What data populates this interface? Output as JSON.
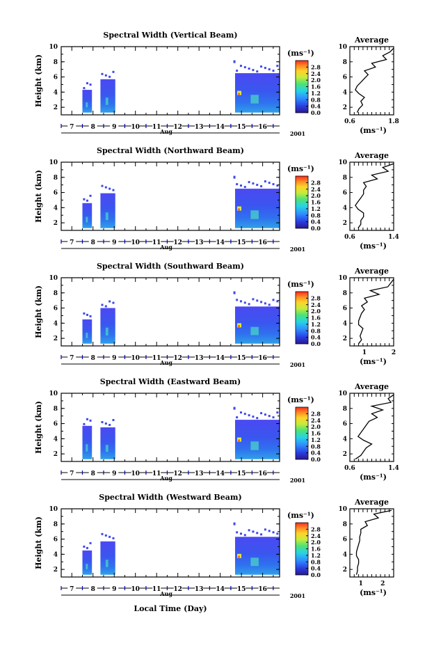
{
  "figure": {
    "month_label": "Aug",
    "year_label": "2001",
    "footer_xlabel": "Local Time (Day)",
    "y_label": "Height (km)",
    "unit_label": "(ms⁻¹)",
    "avg_title": "Average",
    "avg_xunit": "(ms⁻¹)"
  },
  "chart_data": [
    {
      "type": "heatmap",
      "title": "Spectral Width (Vertical Beam)",
      "ylabel": "Height (km)",
      "xlabel": "Aug",
      "x_ticks": [
        "7",
        "8",
        "9",
        "10",
        "11",
        "12",
        "13",
        "14",
        "15",
        "16"
      ],
      "y_ticks": [
        "2",
        "4",
        "6",
        "8",
        "10"
      ],
      "ylim": [
        1,
        10
      ],
      "xlim": [
        6.5,
        16.8
      ],
      "colorbar": {
        "label": "(ms⁻¹)",
        "ticks": [
          "0.0",
          "0.4",
          "0.8",
          "1.2",
          "1.6",
          "2.0",
          "2.4",
          "2.8"
        ],
        "range": [
          0,
          2.8
        ]
      },
      "data_blocks": [
        {
          "x": [
            7.5,
            7.95
          ],
          "y": [
            1.3,
            4.3
          ],
          "value": 0.6
        },
        {
          "x": [
            8.35,
            9.05
          ],
          "y": [
            1.3,
            5.7
          ],
          "value": 0.7
        },
        {
          "x": [
            14.7,
            16.8
          ],
          "y": [
            1.3,
            6.5
          ],
          "value": 0.8
        }
      ],
      "average_profile": {
        "title": "Average",
        "xlim": [
          0.6,
          1.8
        ],
        "x_ticks": [
          "0.6",
          "1.8"
        ],
        "y_ticks": [
          "2",
          "4",
          "6",
          "8",
          "10"
        ],
        "heights": [
          1.3,
          1.8,
          2.3,
          2.8,
          3.3,
          3.8,
          4.3,
          4.8,
          5.3,
          5.8,
          6.3,
          6.8,
          7.3,
          7.8,
          8.3,
          8.8,
          9.3,
          9.8
        ],
        "values": [
          0.8,
          0.85,
          0.95,
          0.9,
          1.0,
          0.85,
          0.75,
          0.8,
          0.9,
          1.0,
          1.1,
          1.0,
          1.3,
          1.2,
          1.6,
          1.5,
          1.7,
          1.8
        ]
      }
    },
    {
      "type": "heatmap",
      "title": "Spectral Width (Northward Beam)",
      "ylabel": "Height (km)",
      "xlabel": "Aug",
      "x_ticks": [
        "7",
        "8",
        "9",
        "10",
        "11",
        "12",
        "13",
        "14",
        "15",
        "16"
      ],
      "y_ticks": [
        "2",
        "4",
        "6",
        "8",
        "10"
      ],
      "ylim": [
        1,
        10
      ],
      "xlim": [
        6.5,
        16.8
      ],
      "colorbar": {
        "label": "(ms⁻¹)",
        "ticks": [
          "0.0",
          "0.4",
          "0.8",
          "1.2",
          "1.6",
          "2.0",
          "2.4",
          "2.8"
        ],
        "range": [
          0,
          2.8
        ]
      },
      "data_blocks": [
        {
          "x": [
            7.5,
            7.95
          ],
          "y": [
            1.3,
            4.6
          ],
          "value": 0.6
        },
        {
          "x": [
            8.35,
            9.05
          ],
          "y": [
            1.3,
            5.9
          ],
          "value": 0.7
        },
        {
          "x": [
            14.7,
            16.8
          ],
          "y": [
            1.3,
            6.5
          ],
          "value": 0.8
        }
      ],
      "average_profile": {
        "title": "Average",
        "xlim": [
          0.6,
          1.4
        ],
        "x_ticks": [
          "0.6",
          "1.4"
        ],
        "y_ticks": [
          "2",
          "4",
          "6",
          "8",
          "10"
        ],
        "heights": [
          1.3,
          1.8,
          2.3,
          2.8,
          3.3,
          3.8,
          4.3,
          4.8,
          5.3,
          5.8,
          6.3,
          6.8,
          7.3,
          7.8,
          8.3,
          8.8,
          9.3,
          9.8
        ],
        "values": [
          0.75,
          0.8,
          0.8,
          0.85,
          0.85,
          0.75,
          0.7,
          0.75,
          0.8,
          0.85,
          0.85,
          0.9,
          0.85,
          1.1,
          1.0,
          1.3,
          1.2,
          1.4
        ]
      }
    },
    {
      "type": "heatmap",
      "title": "Spectral Width (Southward Beam)",
      "ylabel": "Height (km)",
      "xlabel": "Aug",
      "x_ticks": [
        "7",
        "8",
        "9",
        "10",
        "11",
        "12",
        "13",
        "14",
        "15",
        "16"
      ],
      "y_ticks": [
        "2",
        "4",
        "6",
        "8",
        "10"
      ],
      "ylim": [
        1,
        10
      ],
      "xlim": [
        6.5,
        16.8
      ],
      "colorbar": {
        "label": "(ms⁻¹)",
        "ticks": [
          "0.0",
          "0.4",
          "0.8",
          "1.2",
          "1.6",
          "2.0",
          "2.4",
          "2.8"
        ],
        "range": [
          0,
          2.8
        ]
      },
      "data_blocks": [
        {
          "x": [
            7.5,
            7.95
          ],
          "y": [
            1.3,
            4.5
          ],
          "value": 0.6
        },
        {
          "x": [
            8.35,
            9.05
          ],
          "y": [
            1.3,
            6.0
          ],
          "value": 0.7
        },
        {
          "x": [
            14.7,
            16.8
          ],
          "y": [
            1.3,
            6.2
          ],
          "value": 0.8
        }
      ],
      "average_profile": {
        "title": "Average",
        "xlim": [
          0.5,
          2.0
        ],
        "x_ticks": [
          "1",
          "2"
        ],
        "y_ticks": [
          "2",
          "4",
          "6",
          "8",
          "10"
        ],
        "heights": [
          1.3,
          1.8,
          2.3,
          2.8,
          3.3,
          3.8,
          4.3,
          4.8,
          5.3,
          5.8,
          6.3,
          6.8,
          7.3,
          7.8,
          8.3,
          8.8,
          9.3,
          9.8
        ],
        "values": [
          0.8,
          0.9,
          0.85,
          0.9,
          0.95,
          0.8,
          0.8,
          0.85,
          0.9,
          1.0,
          0.9,
          1.1,
          1.0,
          1.5,
          1.2,
          1.8,
          1.9,
          2.0
        ]
      }
    },
    {
      "type": "heatmap",
      "title": "Spectral Width (Eastward Beam)",
      "ylabel": "Height (km)",
      "xlabel": "Aug",
      "x_ticks": [
        "7",
        "8",
        "9",
        "10",
        "11",
        "12",
        "13",
        "14",
        "15",
        "16"
      ],
      "y_ticks": [
        "2",
        "4",
        "6",
        "8",
        "10"
      ],
      "ylim": [
        1,
        10
      ],
      "xlim": [
        6.5,
        16.8
      ],
      "colorbar": {
        "label": "(ms⁻¹)",
        "ticks": [
          "0.0",
          "0.4",
          "0.8",
          "1.2",
          "1.6",
          "2.0",
          "2.4",
          "2.8"
        ],
        "range": [
          0,
          2.8
        ]
      },
      "data_blocks": [
        {
          "x": [
            7.5,
            7.95
          ],
          "y": [
            1.3,
            5.7
          ],
          "value": 0.6
        },
        {
          "x": [
            8.35,
            9.05
          ],
          "y": [
            1.3,
            5.5
          ],
          "value": 0.7
        },
        {
          "x": [
            14.7,
            16.8
          ],
          "y": [
            1.3,
            6.5
          ],
          "value": 0.8
        }
      ],
      "average_profile": {
        "title": "Average",
        "xlim": [
          0.6,
          1.4
        ],
        "x_ticks": [
          "0.6",
          "1.4"
        ],
        "y_ticks": [
          "2",
          "4",
          "6",
          "8",
          "10"
        ],
        "heights": [
          1.3,
          1.8,
          2.3,
          2.8,
          3.3,
          3.8,
          4.3,
          4.8,
          5.3,
          5.8,
          6.3,
          6.8,
          7.3,
          7.8,
          8.3,
          8.8,
          9.3,
          9.8
        ],
        "values": [
          0.7,
          0.8,
          0.85,
          0.9,
          1.0,
          0.85,
          0.75,
          0.8,
          0.85,
          0.9,
          0.95,
          1.1,
          1.0,
          1.2,
          1.0,
          1.35,
          1.3,
          1.4
        ]
      }
    },
    {
      "type": "heatmap",
      "title": "Spectral Width (Westward Beam)",
      "ylabel": "Height (km)",
      "xlabel": "Aug",
      "x_ticks": [
        "7",
        "8",
        "9",
        "10",
        "11",
        "12",
        "13",
        "14",
        "15",
        "16"
      ],
      "y_ticks": [
        "2",
        "4",
        "6",
        "8",
        "10"
      ],
      "ylim": [
        1,
        10
      ],
      "xlim": [
        6.5,
        16.8
      ],
      "colorbar": {
        "label": "(ms⁻¹)",
        "ticks": [
          "0.0",
          "0.4",
          "0.8",
          "1.2",
          "1.6",
          "2.0",
          "2.4",
          "2.8"
        ],
        "range": [
          0,
          2.8
        ]
      },
      "data_blocks": [
        {
          "x": [
            7.5,
            7.95
          ],
          "y": [
            1.3,
            4.5
          ],
          "value": 0.6
        },
        {
          "x": [
            8.35,
            9.05
          ],
          "y": [
            1.3,
            5.7
          ],
          "value": 0.7
        },
        {
          "x": [
            14.7,
            16.8
          ],
          "y": [
            1.3,
            6.3
          ],
          "value": 0.8
        }
      ],
      "average_profile": {
        "title": "Average",
        "xlim": [
          0.5,
          2.5
        ],
        "x_ticks": [
          "1",
          "2"
        ],
        "y_ticks": [
          "2",
          "4",
          "6",
          "8",
          "10"
        ],
        "heights": [
          1.3,
          1.8,
          2.3,
          2.8,
          3.3,
          3.8,
          4.3,
          4.8,
          5.3,
          5.8,
          6.3,
          6.8,
          7.3,
          7.8,
          8.3,
          8.8,
          9.3,
          9.8
        ],
        "values": [
          0.8,
          0.85,
          0.85,
          0.9,
          0.9,
          0.8,
          0.8,
          0.85,
          0.9,
          0.95,
          0.95,
          1.0,
          1.0,
          1.3,
          1.2,
          1.8,
          1.6,
          2.4
        ]
      }
    }
  ]
}
